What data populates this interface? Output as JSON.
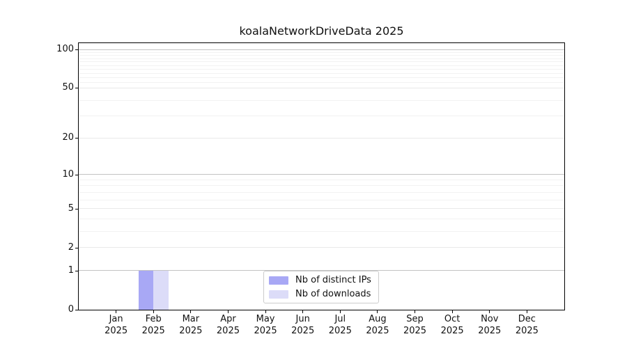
{
  "chart_data": {
    "type": "bar",
    "title": "koalaNetworkDriveData 2025",
    "categories": [
      {
        "month": "Jan",
        "year": "2025"
      },
      {
        "month": "Feb",
        "year": "2025"
      },
      {
        "month": "Mar",
        "year": "2025"
      },
      {
        "month": "Apr",
        "year": "2025"
      },
      {
        "month": "May",
        "year": "2025"
      },
      {
        "month": "Jun",
        "year": "2025"
      },
      {
        "month": "Jul",
        "year": "2025"
      },
      {
        "month": "Aug",
        "year": "2025"
      },
      {
        "month": "Sep",
        "year": "2025"
      },
      {
        "month": "Oct",
        "year": "2025"
      },
      {
        "month": "Nov",
        "year": "2025"
      },
      {
        "month": "Dec",
        "year": "2025"
      }
    ],
    "series": [
      {
        "name": "Nb of distinct IPs",
        "color": "#a8a8f5",
        "values": [
          0,
          1,
          0,
          0,
          0,
          0,
          0,
          0,
          0,
          0,
          0,
          0
        ]
      },
      {
        "name": "Nb of downloads",
        "color": "#dcdcf8",
        "values": [
          0,
          1,
          0,
          0,
          0,
          0,
          0,
          0,
          0,
          0,
          0,
          0
        ]
      }
    ],
    "xlabel": "",
    "ylabel": "",
    "yticks": [
      0,
      1,
      2,
      5,
      10,
      20,
      50,
      100
    ],
    "ylim": [
      0,
      112
    ],
    "scale": "log1p",
    "grid": "horizontal",
    "gridline_tiers": {
      "strong": [
        1,
        10,
        100
      ],
      "medium": [
        2,
        5,
        20,
        50
      ],
      "minor": [
        3,
        4,
        6,
        7,
        8,
        9,
        30,
        40,
        55,
        60,
        65,
        70,
        75,
        80,
        85,
        90,
        95
      ]
    },
    "legend_position": "inside-bottom-center",
    "bar_width_fraction": 0.4,
    "colors": {
      "spine": "#000000",
      "background": "#ffffff",
      "text": "#111111"
    }
  }
}
